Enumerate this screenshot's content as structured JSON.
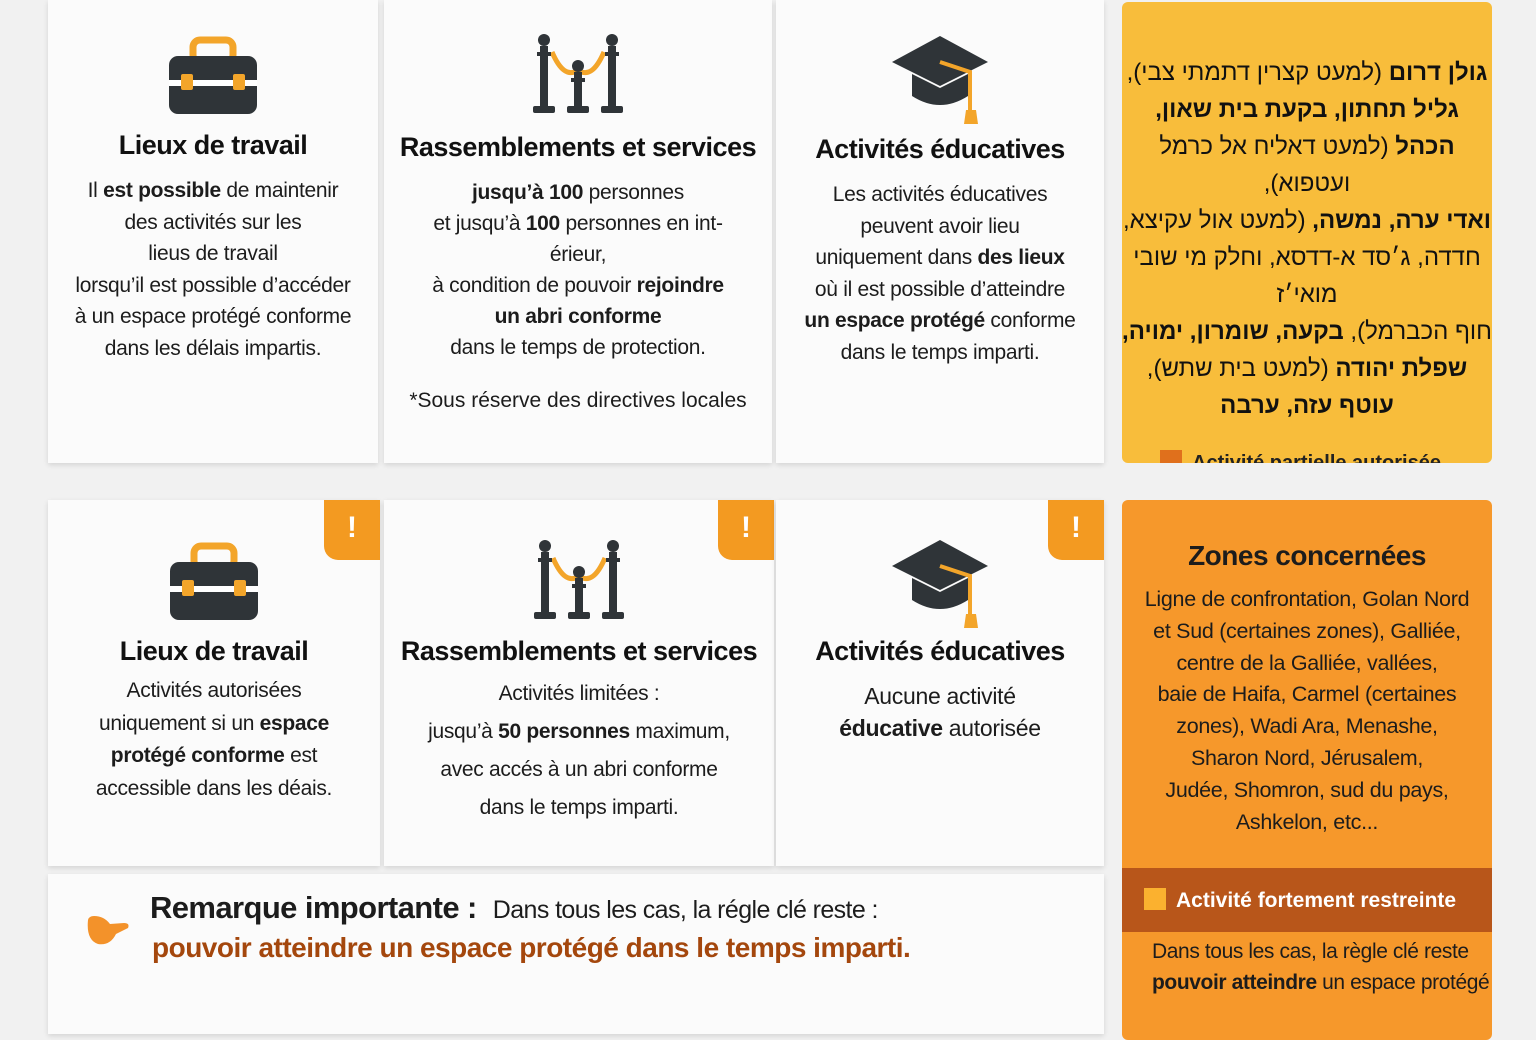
{
  "colors": {
    "yellow": "#f8bd3b",
    "orange": "#f6982b",
    "dark_band": "#b8561a",
    "accent_text": "#a4470d",
    "partial_square": "#e0701c",
    "strong_square": "#fbb12f"
  },
  "top": {
    "cards": [
      {
        "icon": "briefcase-icon",
        "title": "Lieux de travail",
        "lines": [
          [
            {
              "t": "Il "
            },
            {
              "t": "est possible",
              "b": true
            },
            {
              "t": " de maintenir"
            }
          ],
          [
            {
              "t": "des activités sur les"
            }
          ],
          [
            {
              "t": "lieus de travail"
            }
          ],
          [
            {
              "t": "lorsqu’il est possible d’accéder"
            }
          ],
          [
            {
              "t": "à un espace protégé conforme"
            }
          ],
          [
            {
              "t": "dans les délais impartis."
            }
          ]
        ]
      },
      {
        "icon": "stanchions-icon",
        "title": "Rassemblements et services",
        "lines": [
          [
            {
              "t": "jusqu’à ",
              "b": true
            },
            {
              "t": "100",
              "b": true
            },
            {
              "t": " personnes"
            }
          ],
          [
            {
              "t": "et jusqu’à "
            },
            {
              "t": "100",
              "b": true
            },
            {
              "t": " personnes en int-"
            }
          ],
          [
            {
              "t": "érieur,"
            }
          ],
          [
            {
              "t": "à condition de pouvoir "
            },
            {
              "t": "rejoindre",
              "b": true
            }
          ],
          [
            {
              "t": "un abri conforme",
              "b": true
            }
          ],
          [
            {
              "t": "dans le temps de protection."
            }
          ]
        ],
        "note": "*Sous réserve des directives locales"
      },
      {
        "icon": "graduation-cap-icon",
        "title": "Activités éducatives",
        "lines": [
          [
            {
              "t": "Les activités éducatives"
            }
          ],
          [
            {
              "t": "peuvent avoir lieu"
            }
          ],
          [
            {
              "t": "uniquement dans "
            },
            {
              "t": "des lieux",
              "b": true
            }
          ],
          [
            {
              "t": "où il est possible d’atteindre"
            }
          ],
          [
            {
              "t": "un espace protégé",
              "b": true
            },
            {
              "t": " conforme"
            }
          ],
          [
            {
              "t": "dans le temps imparti."
            }
          ]
        ]
      }
    ],
    "panel": {
      "lines": [
        [
          {
            "t": "גולן דרום",
            "b": true
          },
          {
            "t": " (למעט קצרין דתמתי צבי),"
          }
        ],
        [
          {
            "t": "גליל תחתון, בקעת בית שאון,",
            "b": true
          }
        ],
        [
          {
            "t": "הכהל",
            "b": true
          },
          {
            "t": " (למעט דאליח אל כרמל ועטפוא),"
          }
        ],
        [
          {
            "t": "ואדי ערה, נמשה,",
            "b": true
          },
          {
            "t": " (למעט אול עקיצא,"
          }
        ],
        [
          {
            "t": "חדדה, ג׳סד א-דדסא, וחלק מי שובי מואי׳ז"
          }
        ],
        [
          {
            "t": "חוף הכברמל), "
          },
          {
            "t": "בקעה, שומרון, ימויה,",
            "b": true
          }
        ],
        [
          {
            "t": "שפלת יהודה",
            "b": true
          },
          {
            "t": " (למעט בית שתש),"
          }
        ],
        [
          {
            "t": "עוטף עזה, ערבה",
            "b": true
          }
        ]
      ],
      "legend": "Activité partielle autorisée"
    }
  },
  "bottom": {
    "warning_mark": "!",
    "cards": [
      {
        "icon": "briefcase-icon",
        "title": "Lieux de travail",
        "lines": [
          [
            {
              "t": "Activités autorisées"
            }
          ],
          [
            {
              "t": "uniquement si un "
            },
            {
              "t": "espace",
              "b": true
            }
          ],
          [
            {
              "t": "protégé conforme",
              "b": true
            },
            {
              "t": " est"
            }
          ],
          [
            {
              "t": "accessible dans les déais."
            }
          ]
        ]
      },
      {
        "icon": "stanchions-icon",
        "title": "Rassemblements et services",
        "lines": [
          [
            {
              "t": "Activités limitées :"
            }
          ],
          [
            {
              "t": "jusqu’à "
            },
            {
              "t": "50 personnes",
              "b": true
            },
            {
              "t": " maximum,"
            }
          ],
          [
            {
              "t": "avec accés à un abri conforme"
            }
          ],
          [
            {
              "t": "dans le temps imparti."
            }
          ]
        ]
      },
      {
        "icon": "graduation-cap-icon",
        "title": "Activités éducatives",
        "lines": [
          [
            {
              "t": "Aucune activité"
            }
          ],
          [
            {
              "t": "éducative",
              "b": true
            },
            {
              "t": " autorisée"
            }
          ]
        ]
      }
    ],
    "panel": {
      "title": "Zones concernées",
      "lines": [
        [
          {
            "t": "Ligne de confrontation, Golan Nord"
          }
        ],
        [
          {
            "t": "et Sud (certaines zones), Galliée,"
          }
        ],
        [
          {
            "t": "centre de la Galliée, vallées,"
          }
        ],
        [
          {
            "t": "baie de Haifa, Carmel (certaines"
          }
        ],
        [
          {
            "t": "zones), Wadi Ara, Menashe,"
          }
        ],
        [
          {
            "t": "Sharon Nord, Jérusalem,"
          }
        ],
        [
          {
            "t": "Judée, Shomron, sud du pays,"
          }
        ],
        [
          {
            "t": "Ashkelon, etc..."
          }
        ]
      ],
      "legend": "Activité fortement restreinte",
      "footer": [
        [
          {
            "t": "Dans tous les cas, la règle clé reste"
          }
        ],
        [
          {
            "t": "pouvoir atteindre",
            "b": true
          },
          {
            "t": " un espace protégé"
          }
        ]
      ]
    }
  },
  "remark": {
    "label": "Remarque importante :",
    "text": "Dans tous les cas, la régle clé reste :",
    "emphasis": "pouvoir atteindre un espace protégé dans le temps imparti."
  }
}
